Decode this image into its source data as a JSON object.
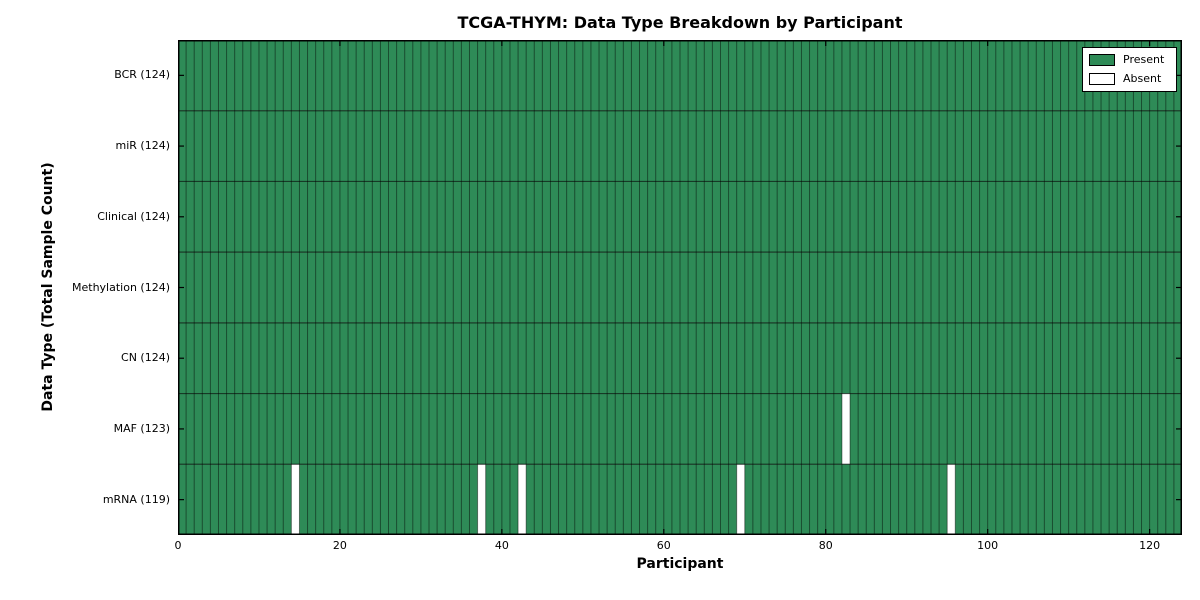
{
  "figure": {
    "background": "#ffffff"
  },
  "chart_data": {
    "type": "heatmap",
    "title": "TCGA-THYM: Data Type Breakdown by Participant",
    "xlabel": "Participant",
    "ylabel": "Data Type (Total Sample Count)",
    "xlim": [
      0,
      124
    ],
    "x_ticks": [
      0,
      20,
      40,
      60,
      80,
      100,
      120
    ],
    "n_participants": 124,
    "legend_position": "upper right",
    "legend": [
      {
        "label": "Present",
        "color": "#2e8b57"
      },
      {
        "label": "Absent",
        "color": "#ffffff"
      }
    ],
    "colors": {
      "present": "#2e8b57",
      "absent": "#ffffff",
      "cell_edge": "#000000",
      "frame": "#000000"
    },
    "rows": [
      {
        "data_type": "BCR",
        "total_samples": 124,
        "label": "BCR (124)",
        "absent_participants": []
      },
      {
        "data_type": "miR",
        "total_samples": 124,
        "label": "miR (124)",
        "absent_participants": []
      },
      {
        "data_type": "Clinical",
        "total_samples": 124,
        "label": "Clinical (124)",
        "absent_participants": []
      },
      {
        "data_type": "Methylation",
        "total_samples": 124,
        "label": "Methylation (124)",
        "absent_participants": []
      },
      {
        "data_type": "CN",
        "total_samples": 124,
        "label": "CN (124)",
        "absent_participants": []
      },
      {
        "data_type": "MAF",
        "total_samples": 123,
        "label": "MAF (123)",
        "absent_participants": [
          82
        ]
      },
      {
        "data_type": "mRNA",
        "total_samples": 119,
        "label": "mRNA (119)",
        "absent_participants": [
          14,
          37,
          42,
          69,
          95
        ]
      }
    ]
  }
}
